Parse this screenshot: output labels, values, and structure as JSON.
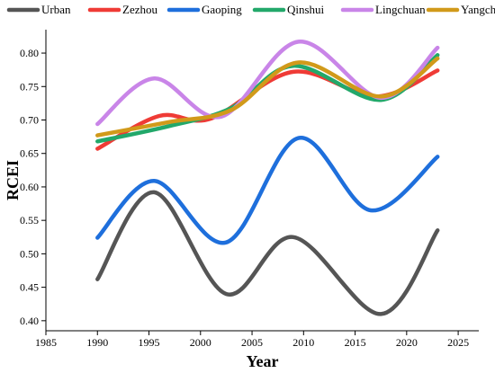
{
  "chart_data": {
    "type": "line",
    "xlabel": "Year",
    "ylabel": "RCEI",
    "xlim": [
      1985,
      2027
    ],
    "ylim": [
      0.385,
      0.835
    ],
    "x_ticks": [
      "1985",
      "1990",
      "1995",
      "2000",
      "2005",
      "2010",
      "2015",
      "2020",
      "2025"
    ],
    "y_ticks": [
      "0.40",
      "0.45",
      "0.50",
      "0.55",
      "0.60",
      "0.65",
      "0.70",
      "0.75",
      "0.80"
    ],
    "legend_position": "top",
    "smooth": true,
    "x": [
      1990,
      1995,
      2000,
      2005,
      2010,
      2015,
      2020,
      2023
    ],
    "series": [
      {
        "name": "Urban",
        "color": "#555555",
        "key_points": [
          [
            1990,
            0.462
          ],
          [
            1995.5,
            0.592
          ],
          [
            2002.5,
            0.44
          ],
          [
            2009,
            0.525
          ],
          [
            2017.5,
            0.41
          ],
          [
            2023,
            0.535
          ]
        ]
      },
      {
        "name": "Zezhou",
        "color": "#ef3b36",
        "key_points": [
          [
            1990,
            0.657
          ],
          [
            1996,
            0.706
          ],
          [
            2001,
            0.702
          ],
          [
            2009,
            0.772
          ],
          [
            2017,
            0.735
          ],
          [
            2023,
            0.774
          ]
        ]
      },
      {
        "name": "Gaoping",
        "color": "#1e6fdc",
        "key_points": [
          [
            1990,
            0.524
          ],
          [
            1995.5,
            0.609
          ],
          [
            2002.5,
            0.517
          ],
          [
            2009.5,
            0.673
          ],
          [
            2016.5,
            0.565
          ],
          [
            2023,
            0.645
          ]
        ]
      },
      {
        "name": "Qinshui",
        "color": "#22a86a",
        "key_points": [
          [
            1990,
            0.668
          ],
          [
            1997,
            0.691
          ],
          [
            2003,
            0.718
          ],
          [
            2009,
            0.781
          ],
          [
            2017.5,
            0.73
          ],
          [
            2023,
            0.797
          ]
        ]
      },
      {
        "name": "Lingchuan",
        "color": "#c985e8",
        "key_points": [
          [
            1990,
            0.694
          ],
          [
            1995.5,
            0.762
          ],
          [
            2002,
            0.705
          ],
          [
            2009.5,
            0.817
          ],
          [
            2017.5,
            0.733
          ],
          [
            2023,
            0.808
          ]
        ]
      },
      {
        "name": "Yangcheng",
        "color": "#d19a1a",
        "key_points": [
          [
            1990,
            0.677
          ],
          [
            1997,
            0.697
          ],
          [
            2003,
            0.715
          ],
          [
            2009.5,
            0.786
          ],
          [
            2017.5,
            0.735
          ],
          [
            2023,
            0.792
          ]
        ]
      }
    ]
  }
}
